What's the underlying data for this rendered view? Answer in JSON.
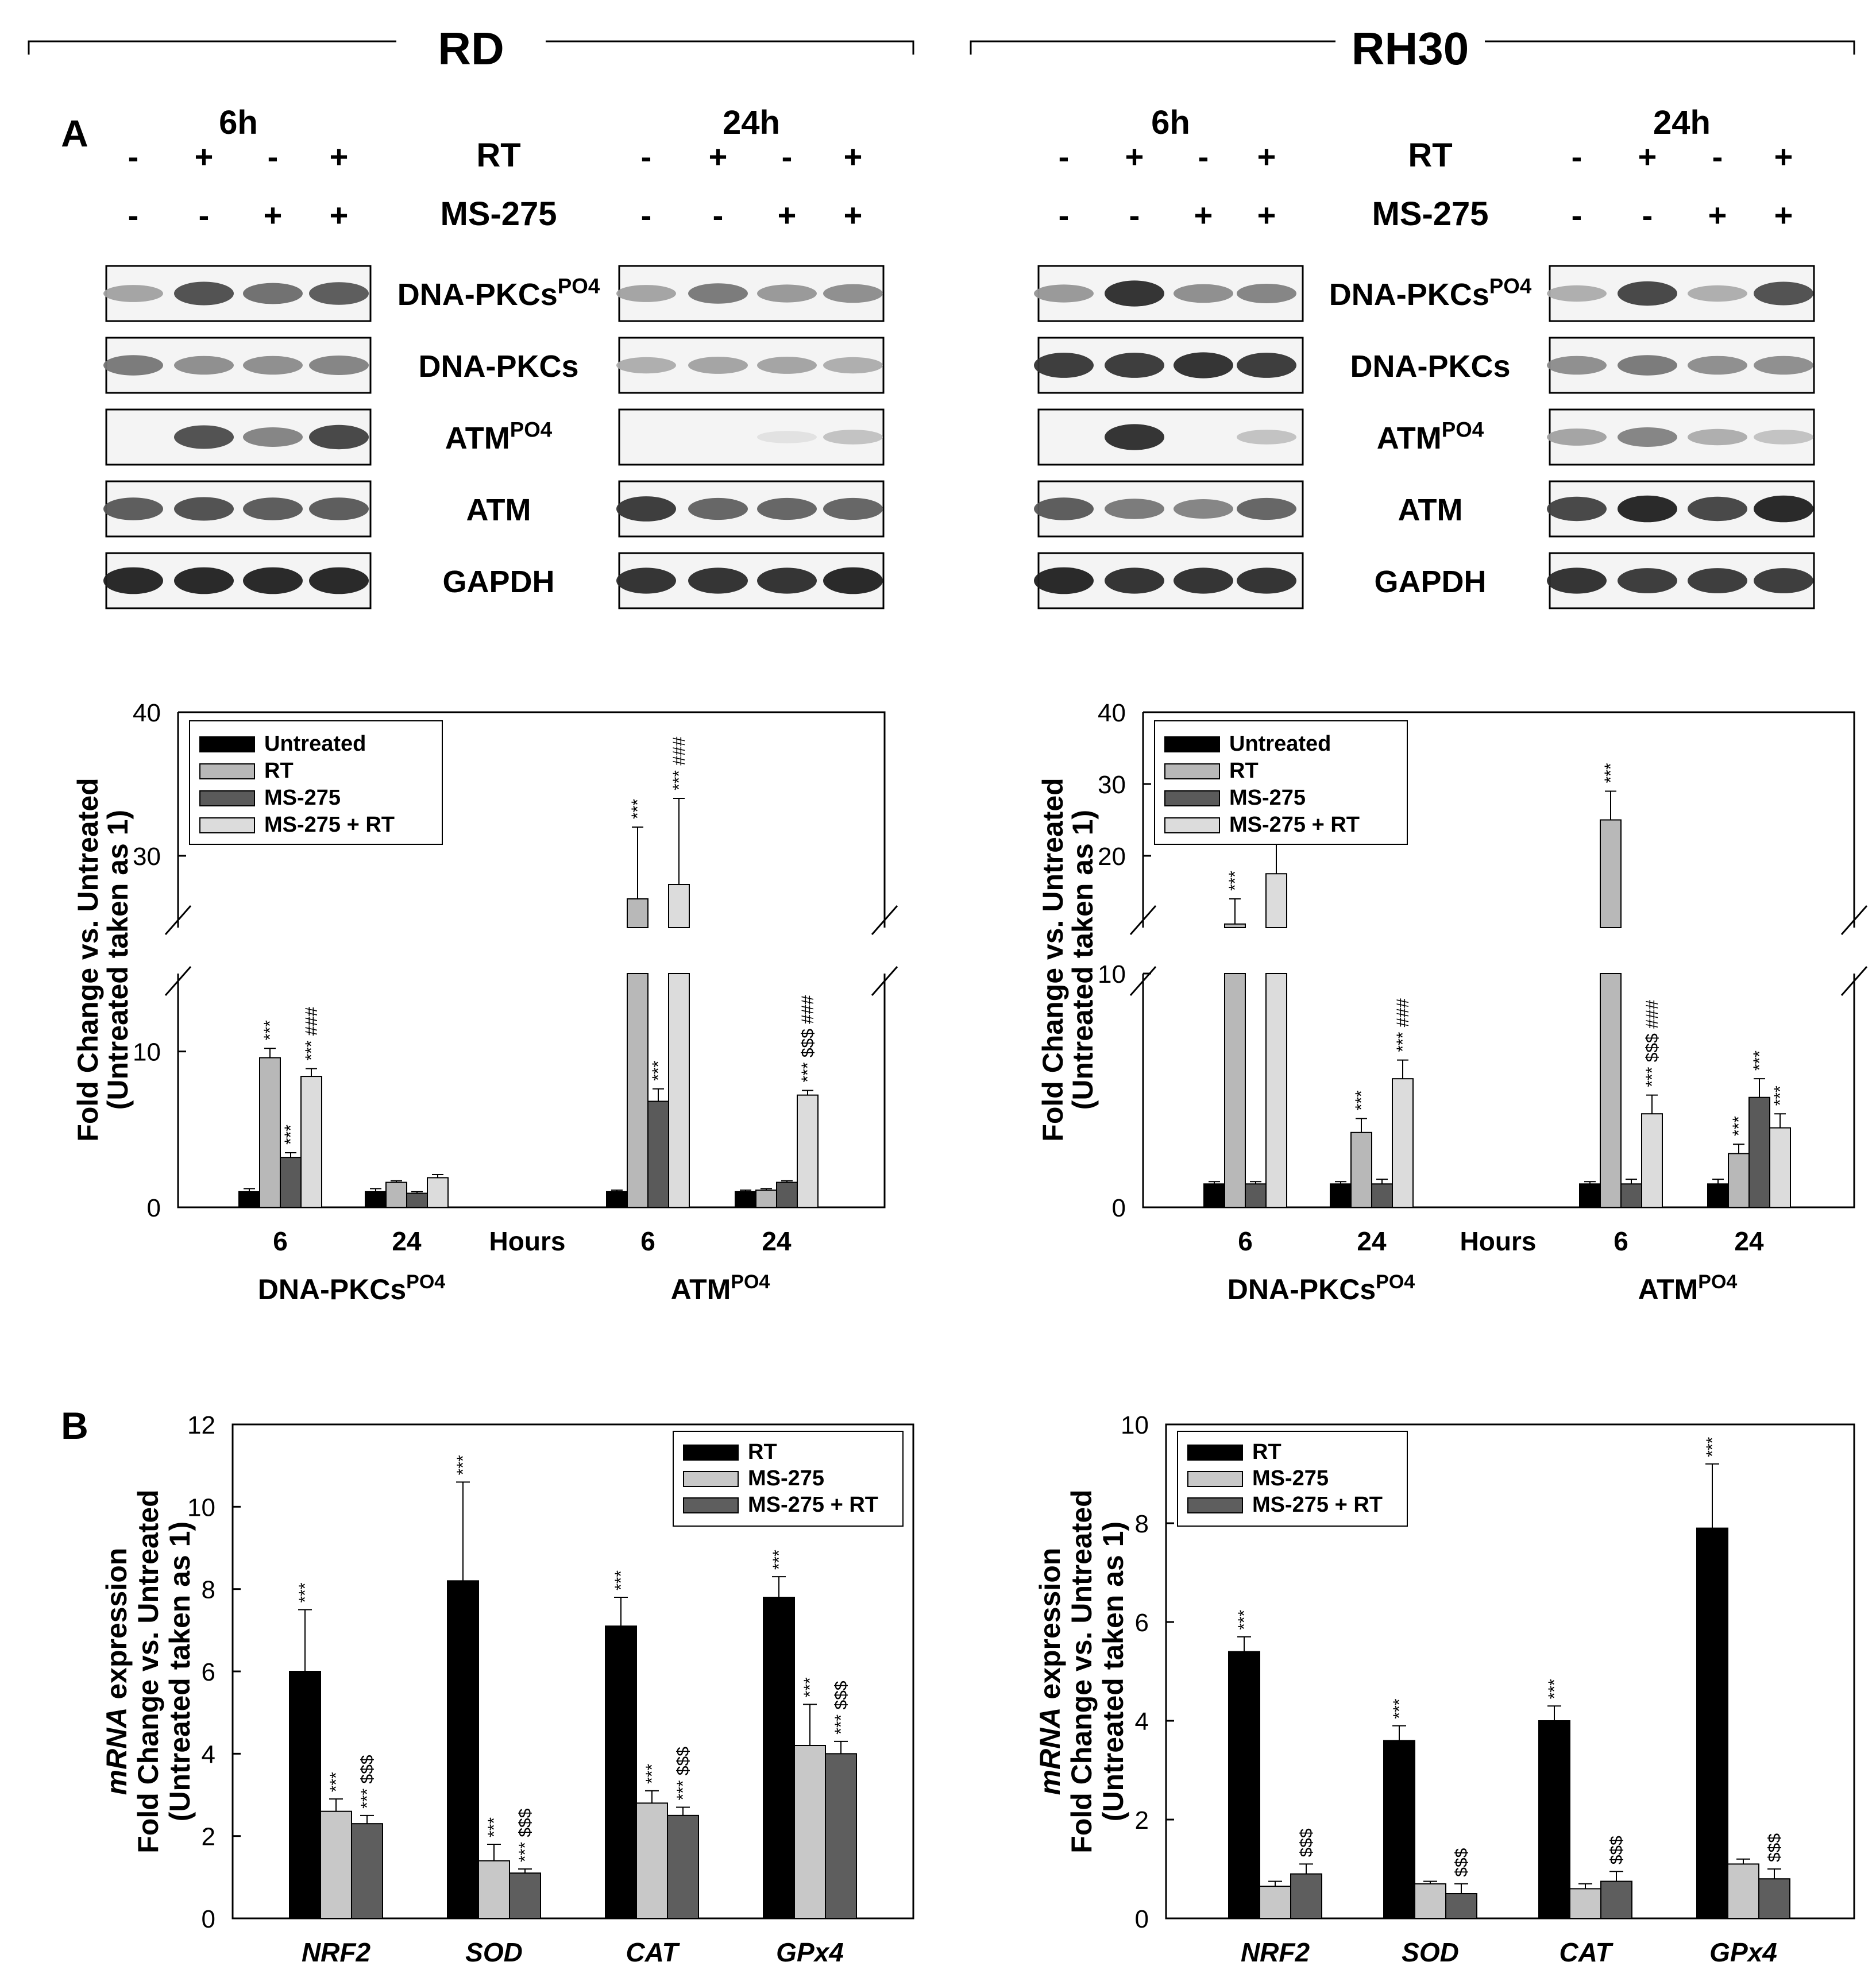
{
  "figure": {
    "cell_lines": [
      "RD",
      "RH30"
    ],
    "panel_labels": {
      "a": "A",
      "b": "B"
    },
    "blot": {
      "timepoints": [
        "6h",
        "24h"
      ],
      "treatment_rows": [
        {
          "label": "RT",
          "signs": [
            "-",
            "+",
            "-",
            "+"
          ]
        },
        {
          "label": "MS-275",
          "signs": [
            "-",
            "-",
            "+",
            "+"
          ]
        }
      ],
      "proteins": [
        {
          "base": "DNA-PKCs",
          "sup": "PO4"
        },
        {
          "base": "DNA-PKCs",
          "sup": ""
        },
        {
          "base": "ATM",
          "sup": "PO4"
        },
        {
          "base": "ATM",
          "sup": ""
        },
        {
          "base": "GAPDH",
          "sup": ""
        }
      ]
    }
  },
  "chart_data": [
    {
      "type": "bar",
      "panel": "A",
      "cell_line": "RD",
      "ylabel": [
        "Fold Change vs. Untreated",
        "(Untreated taken as 1)"
      ],
      "broken_axis": {
        "lower_range": [
          0,
          15
        ],
        "upper_range": [
          25,
          40
        ]
      },
      "yticks": [
        0,
        10,
        30,
        40
      ],
      "legend": [
        "Untreated",
        "RT",
        "MS-275",
        "MS-275 + RT"
      ],
      "legend_position": "top-left",
      "x_center_label": "Hours",
      "groups": [
        {
          "label": "6",
          "family": "DNA-PKCsPO4",
          "values": [
            1.0,
            9.6,
            3.2,
            8.4
          ],
          "errors": [
            0.2,
            0.6,
            0.3,
            0.5
          ],
          "annotations": [
            "",
            "***",
            "***",
            "*** ###"
          ]
        },
        {
          "label": "24",
          "family": "DNA-PKCsPO4",
          "values": [
            1.0,
            1.6,
            0.9,
            1.9
          ],
          "errors": [
            0.2,
            0.1,
            0.1,
            0.2
          ],
          "annotations": [
            "",
            "",
            "",
            ""
          ]
        },
        {
          "label": "6",
          "family": "ATMPO4",
          "values": [
            1.0,
            27,
            6.8,
            28
          ],
          "errors": [
            0.1,
            5,
            0.8,
            6
          ],
          "annotations": [
            "",
            "***",
            "***",
            "*** ###"
          ]
        },
        {
          "label": "24",
          "family": "ATMPO4",
          "values": [
            1.0,
            1.1,
            1.6,
            7.2
          ],
          "errors": [
            0.1,
            0.1,
            0.1,
            0.3
          ],
          "annotations": [
            "",
            "",
            "",
            "*** $$$ ###"
          ]
        }
      ],
      "family_labels": [
        {
          "base": "DNA-PKCs",
          "sup": "PO4"
        },
        {
          "base": "ATM",
          "sup": "PO4"
        }
      ]
    },
    {
      "type": "bar",
      "panel": "A",
      "cell_line": "RH30",
      "ylabel": [
        "Fold Change vs. Untreated",
        "(Untreated taken as 1)"
      ],
      "broken_axis": {
        "lower_range": [
          0,
          10
        ],
        "upper_range": [
          10,
          40
        ]
      },
      "yticks": [
        0,
        10,
        20,
        30,
        40
      ],
      "legend": [
        "Untreated",
        "RT",
        "MS-275",
        "MS-275 + RT"
      ],
      "legend_position": "top-left",
      "x_center_label": "Hours",
      "groups": [
        {
          "label": "6",
          "family": "DNA-PKCsPO4",
          "values": [
            1.0,
            10.5,
            1.0,
            17.5
          ],
          "errors": [
            0.1,
            3.5,
            0.1,
            4.5
          ],
          "annotations": [
            "",
            "***",
            "",
            "*** ###"
          ]
        },
        {
          "label": "24",
          "family": "DNA-PKCsPO4",
          "values": [
            1.0,
            3.2,
            1.0,
            5.5
          ],
          "errors": [
            0.1,
            0.6,
            0.2,
            0.8
          ],
          "annotations": [
            "",
            "***",
            "",
            "*** ###"
          ]
        },
        {
          "label": "6",
          "family": "ATMPO4",
          "values": [
            1.0,
            25,
            1.0,
            4.0
          ],
          "errors": [
            0.1,
            4,
            0.2,
            0.8
          ],
          "annotations": [
            "",
            "***",
            "",
            "*** $$$ ###"
          ]
        },
        {
          "label": "24",
          "family": "ATMPO4",
          "values": [
            1.0,
            2.3,
            4.7,
            3.4
          ],
          "errors": [
            0.2,
            0.4,
            0.8,
            0.6
          ],
          "annotations": [
            "",
            "***",
            "***",
            "***"
          ]
        }
      ],
      "family_labels": [
        {
          "base": "DNA-PKCs",
          "sup": "PO4"
        },
        {
          "base": "ATM",
          "sup": "PO4"
        }
      ]
    },
    {
      "type": "bar",
      "panel": "B",
      "cell_line": "RD",
      "ylabel_italic_word": "mRNA",
      "ylabel": [
        " expression",
        "Fold Change vs. Untreated",
        "(Untreated taken as 1)"
      ],
      "ylim": [
        0,
        12
      ],
      "yticks": [
        0,
        2,
        4,
        6,
        8,
        10,
        12
      ],
      "legend": [
        "RT",
        "MS-275",
        "MS-275 + RT"
      ],
      "legend_position": "top-right",
      "categories": [
        "NRF2",
        "SOD",
        "CAT",
        "GPx4"
      ],
      "series": [
        {
          "name": "RT",
          "values": [
            6.0,
            8.2,
            7.1,
            7.8
          ],
          "errors": [
            1.5,
            2.4,
            0.7,
            0.5
          ]
        },
        {
          "name": "MS-275",
          "values": [
            2.6,
            1.4,
            2.8,
            4.2
          ],
          "errors": [
            0.3,
            0.4,
            0.3,
            1.0
          ]
        },
        {
          "name": "MS-275 + RT",
          "values": [
            2.3,
            1.1,
            2.5,
            4.0
          ],
          "errors": [
            0.2,
            0.1,
            0.2,
            0.3
          ]
        }
      ],
      "annotations": [
        [
          "***",
          "***",
          "***",
          "***"
        ],
        [
          "***",
          "***",
          "***",
          "***"
        ],
        [
          "*** $$$",
          "*** $$$",
          "*** $$$",
          "*** $$$"
        ]
      ]
    },
    {
      "type": "bar",
      "panel": "B",
      "cell_line": "RH30",
      "ylabel_italic_word": "mRNA",
      "ylabel": [
        " expression",
        "Fold Change vs. Untreated",
        "(Untreated taken as 1)"
      ],
      "ylim": [
        0,
        10
      ],
      "yticks": [
        0,
        2,
        4,
        6,
        8,
        10
      ],
      "legend": [
        "RT",
        "MS-275",
        "MS-275 + RT"
      ],
      "legend_position": "top-left",
      "categories": [
        "NRF2",
        "SOD",
        "CAT",
        "GPx4"
      ],
      "series": [
        {
          "name": "RT",
          "values": [
            5.4,
            3.6,
            4.0,
            7.9
          ],
          "errors": [
            0.3,
            0.3,
            0.3,
            1.3
          ]
        },
        {
          "name": "MS-275",
          "values": [
            0.65,
            0.7,
            0.6,
            1.1
          ],
          "errors": [
            0.1,
            0.05,
            0.1,
            0.1
          ]
        },
        {
          "name": "MS-275 + RT",
          "values": [
            0.9,
            0.5,
            0.75,
            0.8
          ],
          "errors": [
            0.2,
            0.2,
            0.2,
            0.2
          ]
        }
      ],
      "annotations": [
        [
          "***",
          "***",
          "***",
          "***"
        ],
        [
          "",
          "",
          "",
          ""
        ],
        [
          "$$$",
          "$$$",
          "$$$",
          "$$$"
        ]
      ]
    }
  ],
  "colors": {
    "untreated": "#000000",
    "rt_panelA": "#b8b8b8",
    "ms275": "#5a5a5a",
    "combo_panelA": "#dcdcdc",
    "rt_panelB": "#000000",
    "ms275_panelB": "#c8c8c8",
    "combo_panelB": "#5e5e5e"
  }
}
